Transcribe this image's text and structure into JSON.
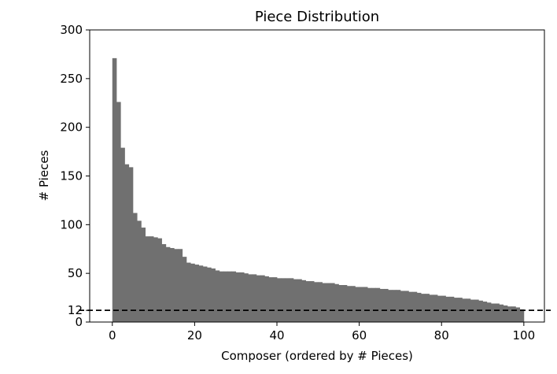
{
  "chart_data": {
    "type": "bar",
    "title": "Piece Distribution",
    "xlabel": "Composer (ordered by # Pieces)",
    "ylabel": "# Pieces",
    "xlim": [
      -5.5,
      105
    ],
    "ylim": [
      0,
      300
    ],
    "xticks": [
      0,
      20,
      40,
      60,
      80,
      100
    ],
    "yticks": [
      0,
      12,
      50,
      100,
      150,
      200,
      250,
      300
    ],
    "grid": false,
    "bar_color": "#707070",
    "reference_line": {
      "y": 12,
      "style": "dashed",
      "color": "#000000"
    },
    "values": [
      271,
      226,
      179,
      162,
      159,
      112,
      104,
      97,
      88,
      88,
      87,
      86,
      80,
      77,
      76,
      75,
      75,
      67,
      61,
      60,
      59,
      58,
      57,
      56,
      55,
      53,
      52,
      52,
      52,
      52,
      51,
      51,
      50,
      49,
      49,
      48,
      48,
      47,
      46,
      46,
      45,
      45,
      45,
      45,
      44,
      44,
      43,
      42,
      42,
      41,
      41,
      40,
      40,
      40,
      39,
      38,
      38,
      37,
      37,
      36,
      36,
      36,
      35,
      35,
      35,
      34,
      34,
      33,
      33,
      33,
      32,
      32,
      31,
      31,
      30,
      29,
      29,
      28,
      28,
      27,
      27,
      26,
      26,
      25,
      25,
      24,
      24,
      23,
      23,
      22,
      21,
      20,
      19,
      19,
      18,
      17,
      16,
      16,
      15,
      13
    ]
  }
}
